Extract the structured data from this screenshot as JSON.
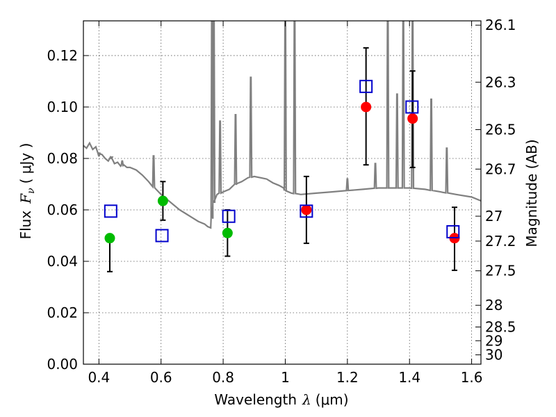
{
  "chart_data": {
    "type": "scatter",
    "xlabel_prefix": "Wavelength",
    "xlabel_symbol": "λ",
    "xlabel_unit": "(μm)",
    "ylabel_prefix": "Flux",
    "ylabel_symbol": "F",
    "ylabel_subscript": "ν",
    "ylabel_unit": "( μJy )",
    "y2label": "Magnitude (AB)",
    "xlim": [
      0.35,
      1.63
    ],
    "ylim": [
      0.0,
      0.1335
    ],
    "grid": true,
    "x_ticks": [
      0.4,
      0.6,
      0.8,
      1.0,
      1.2,
      1.4,
      1.6
    ],
    "x_tick_labels": [
      "0.4",
      "0.6",
      "0.8",
      "1",
      "1.2",
      "1.4",
      "1.6"
    ],
    "y_ticks": [
      0.0,
      0.02,
      0.04,
      0.06,
      0.08,
      0.1,
      0.12
    ],
    "y_tick_labels": [
      "0.00",
      "0.02",
      "0.04",
      "0.06",
      "0.08",
      "0.10",
      "0.12"
    ],
    "mag_ticks": [
      26.1,
      26.3,
      26.5,
      26.7,
      27,
      27.2,
      27.5,
      28,
      28.5,
      29,
      30
    ],
    "mag_tick_labels": [
      "26.1",
      "26.3",
      "26.5",
      "26.7",
      "27",
      "27.2",
      "27.5",
      "28",
      "28.5",
      "29",
      "30"
    ],
    "colors": {
      "model": "#808080",
      "green": "#00bb00",
      "red": "#ff0000",
      "blue": "#0000cc",
      "errorbar": "#000000",
      "grid": "#555555"
    },
    "series": [
      {
        "name": "observed_green",
        "marker": "circle",
        "color": "green",
        "points": [
          {
            "x": 0.435,
            "y": 0.049,
            "ylo": 0.036,
            "yhi": null
          },
          {
            "x": 0.606,
            "y": 0.0635,
            "ylo": 0.056,
            "yhi": 0.071
          },
          {
            "x": 0.814,
            "y": 0.051,
            "ylo": 0.042,
            "yhi": 0.06
          }
        ]
      },
      {
        "name": "observed_red",
        "marker": "circle",
        "color": "red",
        "points": [
          {
            "x": 1.068,
            "y": 0.06,
            "ylo": 0.047,
            "yhi": 0.073
          },
          {
            "x": 1.26,
            "y": 0.1,
            "ylo": 0.0775,
            "yhi": 0.123
          },
          {
            "x": 1.41,
            "y": 0.0955,
            "ylo": 0.0765,
            "yhi": 0.114
          },
          {
            "x": 1.545,
            "y": 0.049,
            "ylo": 0.0365,
            "yhi": 0.061
          }
        ]
      },
      {
        "name": "model_synthetic",
        "marker": "square",
        "color": "blue",
        "points": [
          {
            "x": 0.438,
            "y": 0.0595
          },
          {
            "x": 0.603,
            "y": 0.05
          },
          {
            "x": 0.818,
            "y": 0.0575
          },
          {
            "x": 1.068,
            "y": 0.0595
          },
          {
            "x": 1.26,
            "y": 0.108
          },
          {
            "x": 1.408,
            "y": 0.1
          },
          {
            "x": 1.54,
            "y": 0.0515
          }
        ]
      }
    ],
    "model_continuum": [
      [
        0.35,
        0.085
      ],
      [
        0.36,
        0.084
      ],
      [
        0.37,
        0.086
      ],
      [
        0.38,
        0.0835
      ],
      [
        0.39,
        0.0845
      ],
      [
        0.4,
        0.082
      ],
      [
        0.41,
        0.0815
      ],
      [
        0.42,
        0.08
      ],
      [
        0.43,
        0.079
      ],
      [
        0.44,
        0.0805
      ],
      [
        0.45,
        0.078
      ],
      [
        0.46,
        0.0785
      ],
      [
        0.47,
        0.077
      ],
      [
        0.48,
        0.0775
      ],
      [
        0.49,
        0.0765
      ],
      [
        0.5,
        0.0765
      ],
      [
        0.52,
        0.0755
      ],
      [
        0.54,
        0.0735
      ],
      [
        0.56,
        0.071
      ],
      [
        0.58,
        0.0685
      ],
      [
        0.6,
        0.066
      ],
      [
        0.62,
        0.064
      ],
      [
        0.64,
        0.062
      ],
      [
        0.66,
        0.06
      ],
      [
        0.68,
        0.0585
      ],
      [
        0.7,
        0.057
      ],
      [
        0.72,
        0.0555
      ],
      [
        0.74,
        0.0545
      ],
      [
        0.75,
        0.0535
      ],
      [
        0.76,
        0.053
      ],
      [
        0.765,
        0.0575
      ],
      [
        0.77,
        0.063
      ],
      [
        0.78,
        0.066
      ],
      [
        0.8,
        0.067
      ],
      [
        0.82,
        0.068
      ],
      [
        0.84,
        0.07
      ],
      [
        0.86,
        0.071
      ],
      [
        0.88,
        0.0725
      ],
      [
        0.9,
        0.073
      ],
      [
        0.92,
        0.0725
      ],
      [
        0.94,
        0.072
      ],
      [
        0.96,
        0.0705
      ],
      [
        0.98,
        0.0695
      ],
      [
        0.995,
        0.0685
      ],
      [
        1.0,
        0.0675
      ],
      [
        1.02,
        0.0665
      ],
      [
        1.05,
        0.066
      ],
      [
        1.1,
        0.0665
      ],
      [
        1.15,
        0.067
      ],
      [
        1.2,
        0.0675
      ],
      [
        1.25,
        0.068
      ],
      [
        1.3,
        0.0685
      ],
      [
        1.33,
        0.0685
      ],
      [
        1.36,
        0.0685
      ],
      [
        1.4,
        0.0685
      ],
      [
        1.45,
        0.068
      ],
      [
        1.5,
        0.067
      ],
      [
        1.55,
        0.066
      ],
      [
        1.6,
        0.065
      ],
      [
        1.63,
        0.0635
      ]
    ],
    "model_lines": [
      {
        "x": 0.4,
        "h": 0.081
      },
      {
        "x": 0.44,
        "h": 0.08
      },
      {
        "x": 0.475,
        "h": 0.079
      },
      {
        "x": 0.576,
        "h": 0.081
      },
      {
        "x": 0.764,
        "h": 0.14
      },
      {
        "x": 0.77,
        "h": 0.14
      },
      {
        "x": 0.79,
        "h": 0.0945
      },
      {
        "x": 0.84,
        "h": 0.097
      },
      {
        "x": 0.889,
        "h": 0.1115
      },
      {
        "x": 1.0,
        "h": 0.14
      },
      {
        "x": 1.03,
        "h": 0.14
      },
      {
        "x": 1.2,
        "h": 0.072
      },
      {
        "x": 1.29,
        "h": 0.078
      },
      {
        "x": 1.33,
        "h": 0.14
      },
      {
        "x": 1.36,
        "h": 0.105
      },
      {
        "x": 1.38,
        "h": 0.14
      },
      {
        "x": 1.41,
        "h": 0.14
      },
      {
        "x": 1.47,
        "h": 0.103
      },
      {
        "x": 1.52,
        "h": 0.084
      }
    ]
  }
}
